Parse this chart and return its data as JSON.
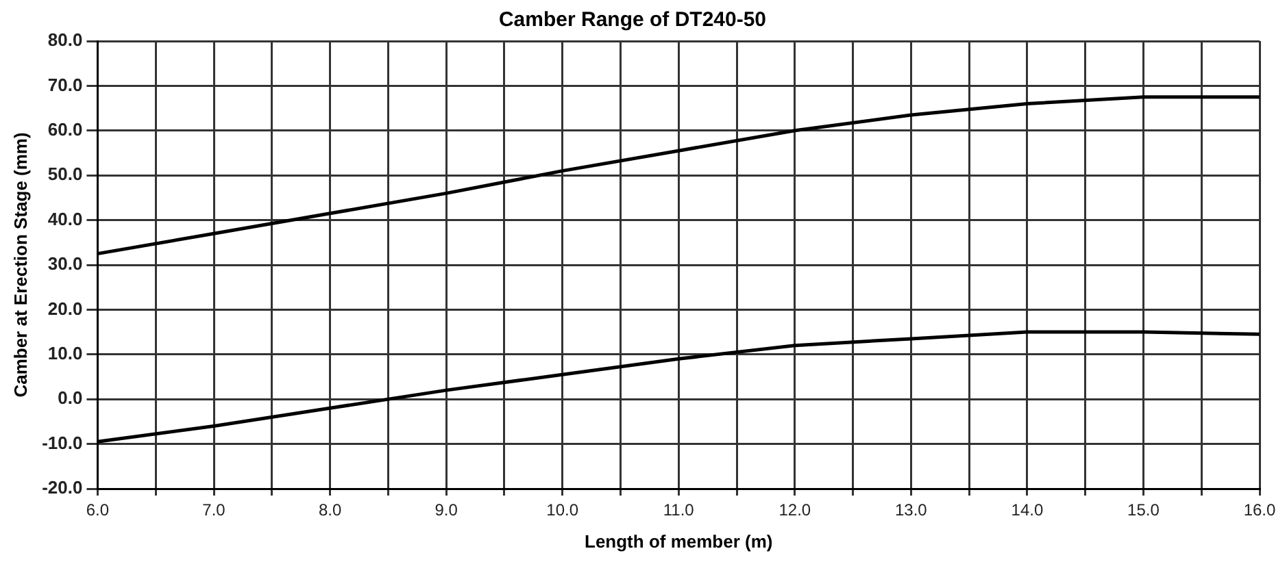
{
  "chart_data": {
    "type": "line",
    "title": "Camber Range of DT240-50",
    "xlabel": "Length of member (m)",
    "ylabel": "Camber at Erection Stage (mm)",
    "x": [
      6,
      7,
      8,
      9,
      10,
      11,
      12,
      13,
      14,
      15,
      16
    ],
    "series": [
      {
        "color": "#000000",
        "values": [
          32.5,
          37,
          41.5,
          46,
          51,
          55.5,
          60,
          63.5,
          66,
          67.5,
          67.5
        ]
      },
      {
        "color": "#000000",
        "values": [
          -9.5,
          -6,
          -2,
          2,
          5.5,
          9,
          12,
          13.5,
          15,
          15,
          14.5
        ]
      }
    ],
    "xlim": [
      6,
      16
    ],
    "ylim": [
      -20,
      80
    ],
    "xticks": [
      {
        "value": 6,
        "label": "6.0"
      },
      {
        "value": 6.5,
        "label": null
      },
      {
        "value": 7,
        "label": "7.0"
      },
      {
        "value": 7.5,
        "label": null
      },
      {
        "value": 8,
        "label": "8.0"
      },
      {
        "value": 8.5,
        "label": null
      },
      {
        "value": 9,
        "label": "9.0"
      },
      {
        "value": 9.5,
        "label": null
      },
      {
        "value": 10,
        "label": "10.0"
      },
      {
        "value": 10.5,
        "label": null
      },
      {
        "value": 11,
        "label": "11.0"
      },
      {
        "value": 11.5,
        "label": null
      },
      {
        "value": 12,
        "label": "12.0"
      },
      {
        "value": 12.5,
        "label": null
      },
      {
        "value": 13,
        "label": "13.0"
      },
      {
        "value": 13.5,
        "label": null
      },
      {
        "value": 14,
        "label": "14.0"
      },
      {
        "value": 14.5,
        "label": null
      },
      {
        "value": 15,
        "label": "15.0"
      },
      {
        "value": 15.5,
        "label": null
      },
      {
        "value": 16,
        "label": "16.0"
      }
    ],
    "yticks": [
      {
        "value": -20,
        "label": "-20.0"
      },
      {
        "value": -10,
        "label": "-10.0"
      },
      {
        "value": 0,
        "label": "0.0"
      },
      {
        "value": 10,
        "label": "10.0"
      },
      {
        "value": 20,
        "label": "20.0"
      },
      {
        "value": 30,
        "label": "30.0"
      },
      {
        "value": 40,
        "label": "40.0"
      },
      {
        "value": 50,
        "label": "50.0"
      },
      {
        "value": 60,
        "label": "60.0"
      },
      {
        "value": 70,
        "label": "70.0"
      },
      {
        "value": 80,
        "label": "80.0"
      }
    ],
    "grid": true,
    "legend": false,
    "marker": "none",
    "line_style": "solid"
  }
}
